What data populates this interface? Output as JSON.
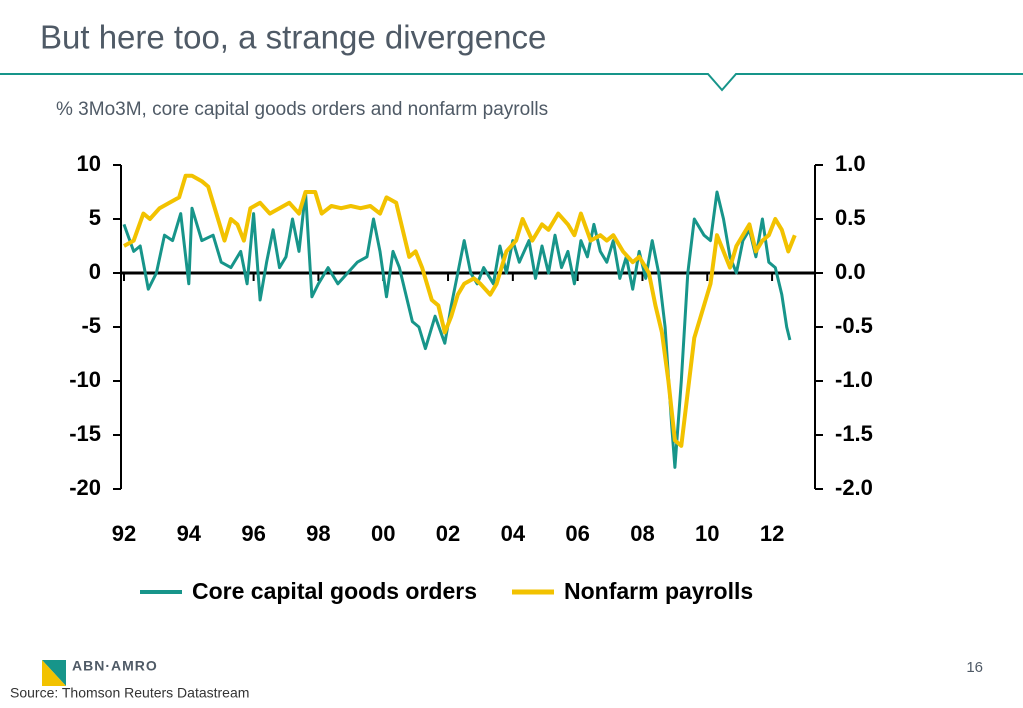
{
  "chart_data": {
    "type": "line",
    "title": "But here too, a strange divergence",
    "subtitle": "% 3Mo3M, core capital goods orders and nonfarm payrolls",
    "page_number": "16",
    "logo": "ABN·AMRO",
    "source": "Source: Thomson Reuters Datastream",
    "xlim": [
      1992,
      2012.8
    ],
    "xticks": [
      {
        "value": 1992,
        "label": "92"
      },
      {
        "value": 1994,
        "label": "94"
      },
      {
        "value": 1996,
        "label": "96"
      },
      {
        "value": 1998,
        "label": "98"
      },
      {
        "value": 2000,
        "label": "00"
      },
      {
        "value": 2002,
        "label": "02"
      },
      {
        "value": 2004,
        "label": "04"
      },
      {
        "value": 2006,
        "label": "06"
      },
      {
        "value": 2008,
        "label": "08"
      },
      {
        "value": 2010,
        "label": "10"
      },
      {
        "value": 2012,
        "label": "12"
      }
    ],
    "ylim": [
      -20,
      10
    ],
    "yticks": [
      10,
      5,
      0,
      -5,
      -10,
      -15,
      -20
    ],
    "y2lim": [
      -2,
      1
    ],
    "y2ticks": [
      {
        "value": 1,
        "label": "1.0"
      },
      0.5,
      {
        "value": 0,
        "label": "0.0"
      },
      -0.5,
      {
        "value": -1,
        "label": "-1.0"
      },
      -1.5,
      {
        "value": -2,
        "label": "-2.0"
      }
    ],
    "series": [
      {
        "name": "Core capital goods orders",
        "color": "#17958a",
        "axis": "y",
        "x": [
          1992.0,
          1992.3,
          1992.5,
          1992.75,
          1993.0,
          1993.25,
          1993.5,
          1993.75,
          1994.0,
          1994.1,
          1994.4,
          1994.75,
          1995.0,
          1995.3,
          1995.6,
          1995.8,
          1996.0,
          1996.2,
          1996.4,
          1996.6,
          1996.8,
          1997.0,
          1997.2,
          1997.4,
          1997.6,
          1997.8,
          1998.0,
          1998.3,
          1998.6,
          1998.9,
          1999.2,
          1999.5,
          1999.7,
          1999.9,
          2000.1,
          2000.3,
          2000.5,
          2000.7,
          2000.9,
          2001.1,
          2001.3,
          2001.6,
          2001.9,
          2002.1,
          2002.3,
          2002.5,
          2002.7,
          2002.9,
          2003.1,
          2003.4,
          2003.6,
          2003.8,
          2004.0,
          2004.2,
          2004.5,
          2004.7,
          2004.9,
          2005.1,
          2005.3,
          2005.5,
          2005.7,
          2005.9,
          2006.1,
          2006.3,
          2006.5,
          2006.7,
          2006.9,
          2007.1,
          2007.3,
          2007.5,
          2007.7,
          2007.9,
          2008.1,
          2008.3,
          2008.5,
          2008.7,
          2008.9,
          2009.0,
          2009.2,
          2009.4,
          2009.6,
          2009.9,
          2010.1,
          2010.3,
          2010.5,
          2010.7,
          2010.9,
          2011.1,
          2011.3,
          2011.5,
          2011.7,
          2011.9,
          2012.1,
          2012.3,
          2012.45,
          2012.55
        ],
        "values": [
          4.5,
          2,
          2.5,
          -1.5,
          0,
          3.5,
          3,
          5.5,
          -1,
          6,
          3,
          3.5,
          1,
          0.5,
          2,
          -1,
          5.5,
          -2.5,
          1,
          4,
          0.5,
          1.5,
          5,
          2,
          7.5,
          -2.2,
          -1,
          0.5,
          -1,
          0,
          1,
          1.5,
          5,
          2,
          -2.2,
          2,
          0.5,
          -2,
          -4.5,
          -5,
          -7,
          -4,
          -6.5,
          -3,
          0,
          3,
          0,
          -1,
          0.5,
          -1,
          2.5,
          0,
          3,
          1,
          3,
          -0.5,
          2.5,
          0,
          3.5,
          0.5,
          2,
          -1,
          3,
          1.5,
          4.5,
          2,
          1,
          3,
          -0.5,
          1.5,
          -1.5,
          2,
          -0.5,
          3,
          0,
          -5,
          -14,
          -18,
          -10,
          0,
          5,
          3.5,
          3,
          7.5,
          5,
          1.5,
          0,
          3,
          4,
          1.5,
          5,
          1,
          0.5,
          -2,
          -5,
          -6.2
        ]
      },
      {
        "name": "Nonfarm payrolls",
        "color": "#f2c200",
        "axis": "y2",
        "x": [
          1992.0,
          1992.3,
          1992.6,
          1992.8,
          1993.1,
          1993.4,
          1993.7,
          1993.9,
          1994.1,
          1994.4,
          1994.6,
          1994.9,
          1995.1,
          1995.3,
          1995.5,
          1995.7,
          1995.9,
          1996.2,
          1996.5,
          1996.8,
          1997.1,
          1997.4,
          1997.6,
          1997.9,
          1998.1,
          1998.4,
          1998.7,
          1999.0,
          1999.3,
          1999.6,
          1999.9,
          2000.1,
          2000.4,
          2000.6,
          2000.8,
          2001.0,
          2001.2,
          2001.5,
          2001.7,
          2001.9,
          2002.1,
          2002.3,
          2002.5,
          2002.8,
          2003.0,
          2003.3,
          2003.5,
          2003.8,
          2004.1,
          2004.3,
          2004.6,
          2004.9,
          2005.1,
          2005.4,
          2005.7,
          2005.9,
          2006.1,
          2006.4,
          2006.7,
          2006.9,
          2007.1,
          2007.4,
          2007.7,
          2007.9,
          2008.2,
          2008.4,
          2008.6,
          2008.8,
          2009.0,
          2009.2,
          2009.4,
          2009.6,
          2009.8,
          2010.1,
          2010.3,
          2010.5,
          2010.7,
          2010.9,
          2011.1,
          2011.3,
          2011.5,
          2011.7,
          2011.9,
          2012.1,
          2012.3,
          2012.5,
          2012.7
        ],
        "values": [
          0.25,
          0.3,
          0.55,
          0.5,
          0.6,
          0.65,
          0.7,
          0.9,
          0.9,
          0.85,
          0.8,
          0.5,
          0.3,
          0.5,
          0.45,
          0.3,
          0.6,
          0.65,
          0.55,
          0.6,
          0.65,
          0.55,
          0.75,
          0.75,
          0.55,
          0.62,
          0.6,
          0.62,
          0.6,
          0.62,
          0.55,
          0.7,
          0.65,
          0.4,
          0.15,
          0.2,
          0.05,
          -0.25,
          -0.3,
          -0.55,
          -0.4,
          -0.2,
          -0.1,
          -0.05,
          -0.1,
          -0.2,
          -0.1,
          0.2,
          0.3,
          0.5,
          0.3,
          0.45,
          0.4,
          0.55,
          0.45,
          0.35,
          0.55,
          0.3,
          0.35,
          0.3,
          0.35,
          0.2,
          0.1,
          0.15,
          0,
          -0.3,
          -0.55,
          -1,
          -1.55,
          -1.6,
          -1.1,
          -0.6,
          -0.4,
          -0.1,
          0.35,
          0.2,
          0.05,
          0.25,
          0.35,
          0.45,
          0.2,
          0.3,
          0.35,
          0.5,
          0.4,
          0.2,
          0.35
        ]
      }
    ]
  }
}
